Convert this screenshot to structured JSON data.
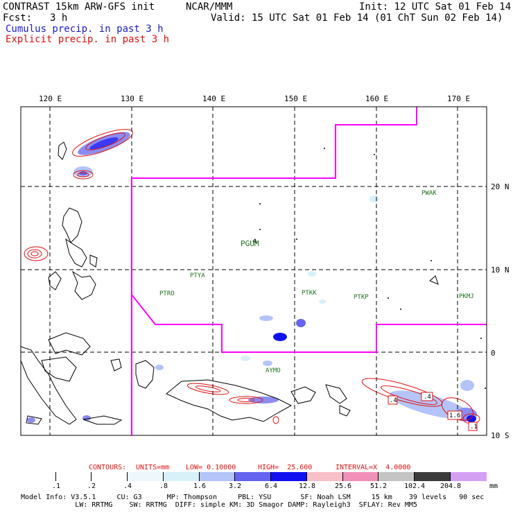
{
  "header": {
    "title": "CONTRAST 15km ARW-GFS init",
    "org": "NCAR/MMM",
    "init": "Init: 12 UTC Sat 01 Feb 14",
    "fcst_label": "Fcst:",
    "fcst_value": "3 h",
    "valid": "Valid: 15 UTC Sat 01 Feb 14 (01 ChT Sun 02 Feb 14)",
    "field1": "Cumulus precip. in past 3 h",
    "field2": "Explicit precip. in past 3 h",
    "field1_color": "#1a1acc",
    "field2_color": "#e01010"
  },
  "axes": {
    "lon_labels": [
      "120 E",
      "130 E",
      "140 E",
      "150 E",
      "160 E",
      "170 E"
    ],
    "lat_labels": [
      "20 N",
      "10 N",
      "0",
      "10 S"
    ]
  },
  "stations": [
    "PWAK",
    "PGUM",
    "PTYA",
    "PTRO",
    "PTKK",
    "PTKP",
    "PKMJ",
    "AYMO"
  ],
  "contour_labels": [
    ".4",
    ".4",
    "1.6",
    ".1"
  ],
  "contours_info": {
    "label": "CONTOURS:",
    "units": "UNITS=mm",
    "low": "LOW= 0.10000",
    "high": "HIGH=  25.600",
    "interval": "INTERVAL=X  4.0000"
  },
  "legend": {
    "labels": [
      ".1",
      ".2",
      ".4",
      ".8",
      "1.6",
      "3.2",
      "6.4",
      "12.8",
      "25.6",
      "51.2",
      "102.4",
      "204.8"
    ],
    "unit": "mm",
    "colors": [
      "#ffffff",
      "#ffffff",
      "#eef8fc",
      "#d8f0f8",
      "#b4c4f8",
      "#8c8cf0",
      "#6464f0",
      "#3a3af4",
      "#1010f0",
      "#f8c0c8",
      "#f090b8",
      "#c4c4c4",
      "#8c8c8c",
      "#3c3c3c",
      "#d4a0f4"
    ]
  },
  "model_info": {
    "line1": "Model Info: V3.5.1     CU: G3      MP: Thompson     PBL: YSU       SF: Noah LSM     15 km    39 levels   90 sec",
    "line2": "             LW: RRTMG    SW: RRTMG  DIFF: simple KM: 3D Smagor DAMP: Rayleigh3  SFLAY: Rev MM5"
  }
}
